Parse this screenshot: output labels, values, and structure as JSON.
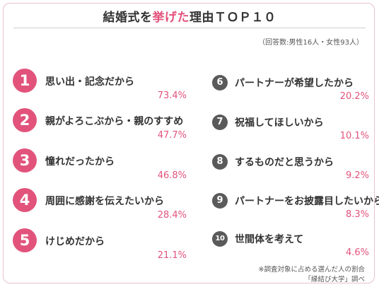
{
  "title_parts": {
    "prefix": "結婚式を",
    "highlight": "挙げた",
    "suffix": "理由ＴＯＰ１０"
  },
  "respondents": "（回答数:男性16人・女性93人）",
  "left_items": [
    {
      "rank": "1",
      "label": "思い出・記念だから",
      "percent": "73.4%"
    },
    {
      "rank": "2",
      "label": "親がよろこぶから・親のすすめ",
      "percent": "47.7%"
    },
    {
      "rank": "3",
      "label": "憧れだったから",
      "percent": "46.8%"
    },
    {
      "rank": "4",
      "label": "周囲に感謝を伝えたいから",
      "percent": "28.4%"
    },
    {
      "rank": "5",
      "label": "けじめだから",
      "percent": "21.1%"
    }
  ],
  "right_items": [
    {
      "rank": "6",
      "label": "パートナーが希望したから",
      "percent": "20.2%"
    },
    {
      "rank": "7",
      "label": "祝福してほしいから",
      "percent": "10.1%"
    },
    {
      "rank": "8",
      "label": "するものだと思うから",
      "percent": "9.2%"
    },
    {
      "rank": "9",
      "label": "パートナーをお披露目したいから",
      "percent": "8.3%"
    },
    {
      "rank": "10",
      "label": "世間体を考えて",
      "percent": "4.6%"
    }
  ],
  "footnote_line1": "※調査対象に占める選んだ人の割合",
  "footnote_line2": "「縁結び大学」調べ",
  "colors": {
    "accent": "#e2537c",
    "badge_gray": "#5a5a5a",
    "text": "#333333",
    "border": "#e7c3cd"
  }
}
